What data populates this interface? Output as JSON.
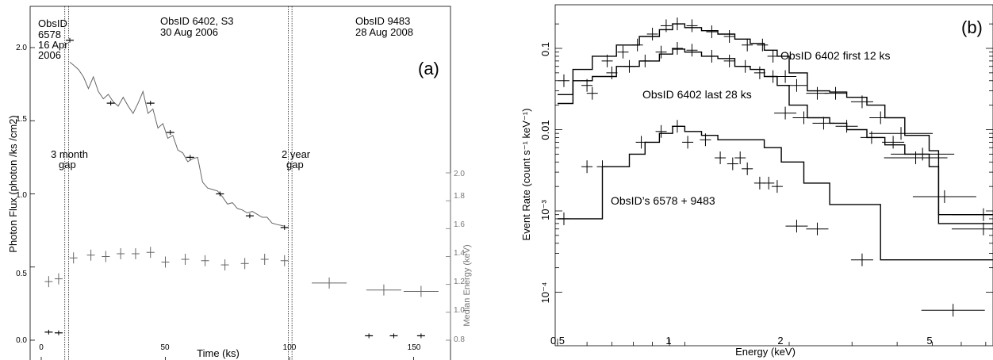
{
  "colors": {
    "axis": "#000000",
    "series_grey": "#555555",
    "median_grey": "#777777"
  },
  "panel_a": {
    "label": "(a)",
    "xlabel": "Time (ks)",
    "ylabel": "Photon Flux (photon /ks /cm2)",
    "ylabel_right": "Median Energy  (keV)",
    "xticks": [
      "0",
      "50",
      "100",
      "150"
    ],
    "yticks": [
      "0.0",
      "0.5",
      "1.0",
      "1.5",
      "2.0"
    ],
    "yticks_right": [
      "0.8",
      "1.0",
      "1.2",
      "1.4",
      "1.6",
      "1.8",
      "2.0"
    ],
    "obs1": [
      "ObsID",
      "6578",
      "16 Apr",
      "2006"
    ],
    "obs2": [
      "ObsID 6402, S3",
      "30 Aug 2006"
    ],
    "obs3": [
      "ObsID 9483",
      "28 Aug 2008"
    ],
    "gap1": [
      "3 month",
      "gap"
    ],
    "gap2": [
      "2 year",
      "gap"
    ]
  },
  "panel_b": {
    "label": "(b)",
    "xlabel": "Energy (keV)",
    "ylabel": "Event Rate (count s⁻¹ keV⁻¹)",
    "xticks": [
      "0.5",
      "1",
      "2",
      "5"
    ],
    "yticks": [
      "0.1",
      "0.01",
      "10⁻³",
      "10⁻⁴"
    ],
    "ann1": "ObsID 6402 first 12 ks",
    "ann2": "ObsID 6402 last 28 ks",
    "ann3": "ObsID’s 6578 + 9483"
  },
  "chart_data": [
    {
      "type": "scatter",
      "panel": "a",
      "xlabel": "Time (ks)",
      "ylabel": "Photon Flux (photon /ks /cm2)",
      "xlim": [
        -3,
        165
      ],
      "ylim": [
        0,
        2.2
      ],
      "y2lim": [
        0.8,
        2.0
      ],
      "series": [
        {
          "axis": "left",
          "points": [
            [
              3,
              0.055
            ],
            [
              7,
              0.05
            ],
            [
              11.5,
              2.05
            ],
            [
              28,
              1.62
            ],
            [
              44,
              1.62
            ],
            [
              52,
              1.42
            ],
            [
              60,
              1.25
            ],
            [
              72,
              1.0
            ],
            [
              84,
              0.85
            ],
            [
              98,
              0.77
            ],
            [
              132,
              0.03
            ],
            [
              142,
              0.03
            ],
            [
              153,
              0.03
            ]
          ]
        },
        {
          "axis": "right",
          "points": [
            [
              3,
              1.22
            ],
            [
              7,
              1.24
            ],
            [
              13,
              1.39
            ],
            [
              20,
              1.41
            ],
            [
              26,
              1.4
            ],
            [
              32,
              1.42
            ],
            [
              38,
              1.42
            ],
            [
              44,
              1.43
            ],
            [
              50,
              1.36
            ],
            [
              58,
              1.38
            ],
            [
              66,
              1.37
            ],
            [
              74,
              1.34
            ],
            [
              82,
              1.35
            ],
            [
              90,
              1.38
            ],
            [
              98,
              1.37
            ],
            [
              116,
              1.21
            ],
            [
              138,
              1.16
            ],
            [
              153,
              1.15
            ]
          ]
        }
      ],
      "lightcurve": [
        [
          11.5,
          1.9
        ],
        [
          13,
          1.88
        ],
        [
          15,
          1.85
        ],
        [
          17,
          1.8
        ],
        [
          19,
          1.72
        ],
        [
          21,
          1.8
        ],
        [
          23,
          1.7
        ],
        [
          25,
          1.65
        ],
        [
          27,
          1.68
        ],
        [
          29,
          1.63
        ],
        [
          31,
          1.6
        ],
        [
          33,
          1.66
        ],
        [
          35,
          1.6
        ],
        [
          37,
          1.55
        ],
        [
          39,
          1.62
        ],
        [
          41,
          1.7
        ],
        [
          43,
          1.55
        ],
        [
          45,
          1.58
        ],
        [
          47,
          1.45
        ],
        [
          49,
          1.48
        ],
        [
          51,
          1.38
        ],
        [
          53,
          1.4
        ],
        [
          55,
          1.3
        ],
        [
          57,
          1.28
        ],
        [
          59,
          1.22
        ],
        [
          61,
          1.24
        ],
        [
          63,
          1.25
        ],
        [
          65,
          1.08
        ],
        [
          67,
          1.04
        ],
        [
          69,
          1.03
        ],
        [
          71,
          1.02
        ],
        [
          73,
          0.98
        ],
        [
          75,
          0.93
        ],
        [
          77,
          0.94
        ],
        [
          79,
          0.9
        ],
        [
          81,
          0.89
        ],
        [
          83,
          0.87
        ],
        [
          85,
          0.88
        ],
        [
          87,
          0.86
        ],
        [
          89,
          0.84
        ],
        [
          91,
          0.84
        ],
        [
          93,
          0.8
        ],
        [
          95,
          0.79
        ],
        [
          98,
          0.78
        ]
      ]
    },
    {
      "type": "line",
      "panel": "b",
      "xlabel": "Energy (keV)",
      "ylabel": "Event Rate (count s⁻¹ keV⁻¹)",
      "xscale": "log",
      "yscale": "log",
      "xlim": [
        0.5,
        8
      ],
      "ylim": [
        5e-05,
        0.26
      ],
      "series": [
        {
          "name": "ObsID 6402 first 12 ks",
          "model": [
            [
              0.5,
              0.027
            ],
            [
              0.55,
              0.055
            ],
            [
              0.62,
              0.08
            ],
            [
              0.72,
              0.11
            ],
            [
              0.83,
              0.14
            ],
            [
              0.94,
              0.17
            ],
            [
              1.02,
              0.2
            ],
            [
              1.1,
              0.18
            ],
            [
              1.22,
              0.165
            ],
            [
              1.35,
              0.15
            ],
            [
              1.5,
              0.13
            ],
            [
              1.65,
              0.115
            ],
            [
              1.8,
              0.095
            ],
            [
              1.95,
              0.08
            ],
            [
              2.1,
              0.05
            ],
            [
              2.35,
              0.03
            ],
            [
              2.7,
              0.029
            ],
            [
              3.0,
              0.025
            ],
            [
              3.4,
              0.02
            ],
            [
              3.8,
              0.014
            ],
            [
              4.3,
              0.0085
            ],
            [
              5.0,
              0.0055
            ],
            [
              5.3,
              0.0009
            ],
            [
              8,
              0.0009
            ]
          ],
          "points": [
            [
              0.52,
              0.04
            ],
            [
              0.6,
              0.035
            ],
            [
              0.68,
              0.07
            ],
            [
              0.75,
              0.09
            ],
            [
              0.82,
              0.11
            ],
            [
              0.9,
              0.15
            ],
            [
              0.98,
              0.19
            ],
            [
              1.05,
              0.2
            ],
            [
              1.15,
              0.19
            ],
            [
              1.3,
              0.16
            ],
            [
              1.45,
              0.14
            ],
            [
              1.62,
              0.11
            ],
            [
              1.78,
              0.11
            ],
            [
              1.9,
              0.08
            ],
            [
              2.05,
              0.045
            ],
            [
              2.2,
              0.035
            ],
            [
              2.5,
              0.028
            ],
            [
              2.8,
              0.028
            ],
            [
              3.3,
              0.022
            ],
            [
              3.7,
              0.014
            ],
            [
              4.2,
              0.009
            ],
            [
              4.8,
              0.005
            ],
            [
              7,
              0.0009
            ]
          ]
        },
        {
          "name": "ObsID 6402 last 28 ks",
          "model": [
            [
              0.5,
              0.021
            ],
            [
              0.55,
              0.04
            ],
            [
              0.62,
              0.045
            ],
            [
              0.72,
              0.06
            ],
            [
              0.83,
              0.07
            ],
            [
              0.94,
              0.085
            ],
            [
              1.02,
              0.098
            ],
            [
              1.1,
              0.09
            ],
            [
              1.22,
              0.08
            ],
            [
              1.35,
              0.075
            ],
            [
              1.5,
              0.06
            ],
            [
              1.65,
              0.055
            ],
            [
              1.8,
              0.045
            ],
            [
              1.95,
              0.035
            ],
            [
              2.1,
              0.02
            ],
            [
              2.35,
              0.014
            ],
            [
              2.7,
              0.012
            ],
            [
              3.0,
              0.01
            ],
            [
              3.4,
              0.008
            ],
            [
              3.8,
              0.0065
            ],
            [
              4.3,
              0.005
            ],
            [
              5.0,
              0.0035
            ],
            [
              5.3,
              0.0007
            ],
            [
              8,
              0.0007
            ]
          ],
          "points": [
            [
              0.62,
              0.028
            ],
            [
              0.7,
              0.05
            ],
            [
              0.78,
              0.06
            ],
            [
              0.86,
              0.07
            ],
            [
              0.95,
              0.09
            ],
            [
              1.05,
              0.1
            ],
            [
              1.15,
              0.095
            ],
            [
              1.3,
              0.08
            ],
            [
              1.45,
              0.07
            ],
            [
              1.6,
              0.06
            ],
            [
              1.75,
              0.05
            ],
            [
              1.9,
              0.045
            ],
            [
              2.05,
              0.016
            ],
            [
              2.3,
              0.014
            ],
            [
              2.6,
              0.012
            ],
            [
              3.0,
              0.011
            ],
            [
              3.5,
              0.008
            ],
            [
              4.0,
              0.007
            ],
            [
              4.6,
              0.0045
            ],
            [
              5.5,
              0.0015
            ],
            [
              7,
              0.0006
            ]
          ]
        },
        {
          "name": "ObsID’s 6578 + 9483",
          "model": [
            [
              0.5,
              0.0008
            ],
            [
              0.66,
              0.0008
            ],
            [
              0.66,
              0.0035
            ],
            [
              0.78,
              0.005
            ],
            [
              0.86,
              0.007
            ],
            [
              0.94,
              0.009
            ],
            [
              1.02,
              0.011
            ],
            [
              1.1,
              0.0095
            ],
            [
              1.22,
              0.0085
            ],
            [
              1.35,
              0.0075
            ],
            [
              1.5,
              0.0075
            ],
            [
              1.65,
              0.0075
            ],
            [
              1.8,
              0.006
            ],
            [
              2.0,
              0.004
            ],
            [
              2.3,
              0.0022
            ],
            [
              2.7,
              0.0012
            ],
            [
              3.7,
              0.0012
            ],
            [
              3.7,
              0.00025
            ],
            [
              8,
              0.00025
            ]
          ],
          "points": [
            [
              0.52,
              0.0008
            ],
            [
              0.6,
              0.0035
            ],
            [
              0.66,
              0.0035
            ],
            [
              0.84,
              0.007
            ],
            [
              0.95,
              0.0095
            ],
            [
              1.05,
              0.011
            ],
            [
              1.12,
              0.007
            ],
            [
              1.25,
              0.0075
            ],
            [
              1.37,
              0.0045
            ],
            [
              1.48,
              0.0038
            ],
            [
              1.55,
              0.0045
            ],
            [
              1.62,
              0.0033
            ],
            [
              1.75,
              0.0022
            ],
            [
              1.85,
              0.0022
            ],
            [
              1.95,
              0.002
            ],
            [
              2.2,
              0.00065
            ],
            [
              2.5,
              0.0006
            ],
            [
              3.3,
              0.00025
            ],
            [
              5.8,
              6e-05
            ]
          ]
        }
      ]
    }
  ]
}
